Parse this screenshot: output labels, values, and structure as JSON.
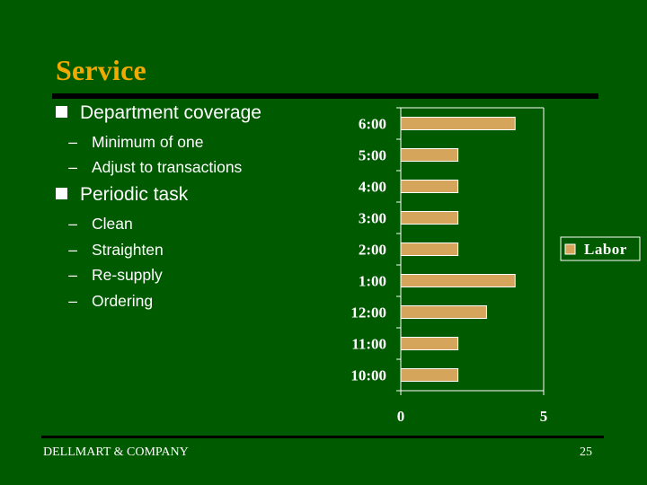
{
  "slide": {
    "title": "Service",
    "bullets": [
      {
        "text": "Department coverage",
        "sub": [
          "Minimum of one",
          "Adjust to transactions"
        ]
      },
      {
        "text": "Periodic task",
        "sub": [
          "Clean",
          "Straighten",
          "Re-supply",
          "Ordering"
        ]
      }
    ],
    "dash": "–",
    "footer_left": "DELLMART & COMPANY",
    "page_number": "25"
  },
  "colors": {
    "background": "#005a00",
    "title": "#f2a900",
    "bar": "#d4a55a",
    "text": "#ffffff"
  },
  "chart_data": {
    "type": "bar",
    "orientation": "horizontal",
    "categories": [
      "10:00",
      "11:00",
      "12:00",
      "1:00",
      "2:00",
      "3:00",
      "4:00",
      "5:00",
      "6:00"
    ],
    "series": [
      {
        "name": "Labor",
        "values": [
          2,
          2,
          3,
          4,
          2,
          2,
          2,
          2,
          4
        ]
      }
    ],
    "xlim": [
      0,
      5
    ],
    "xticks": [
      "0",
      "5"
    ],
    "legend": "right",
    "grid": false
  }
}
